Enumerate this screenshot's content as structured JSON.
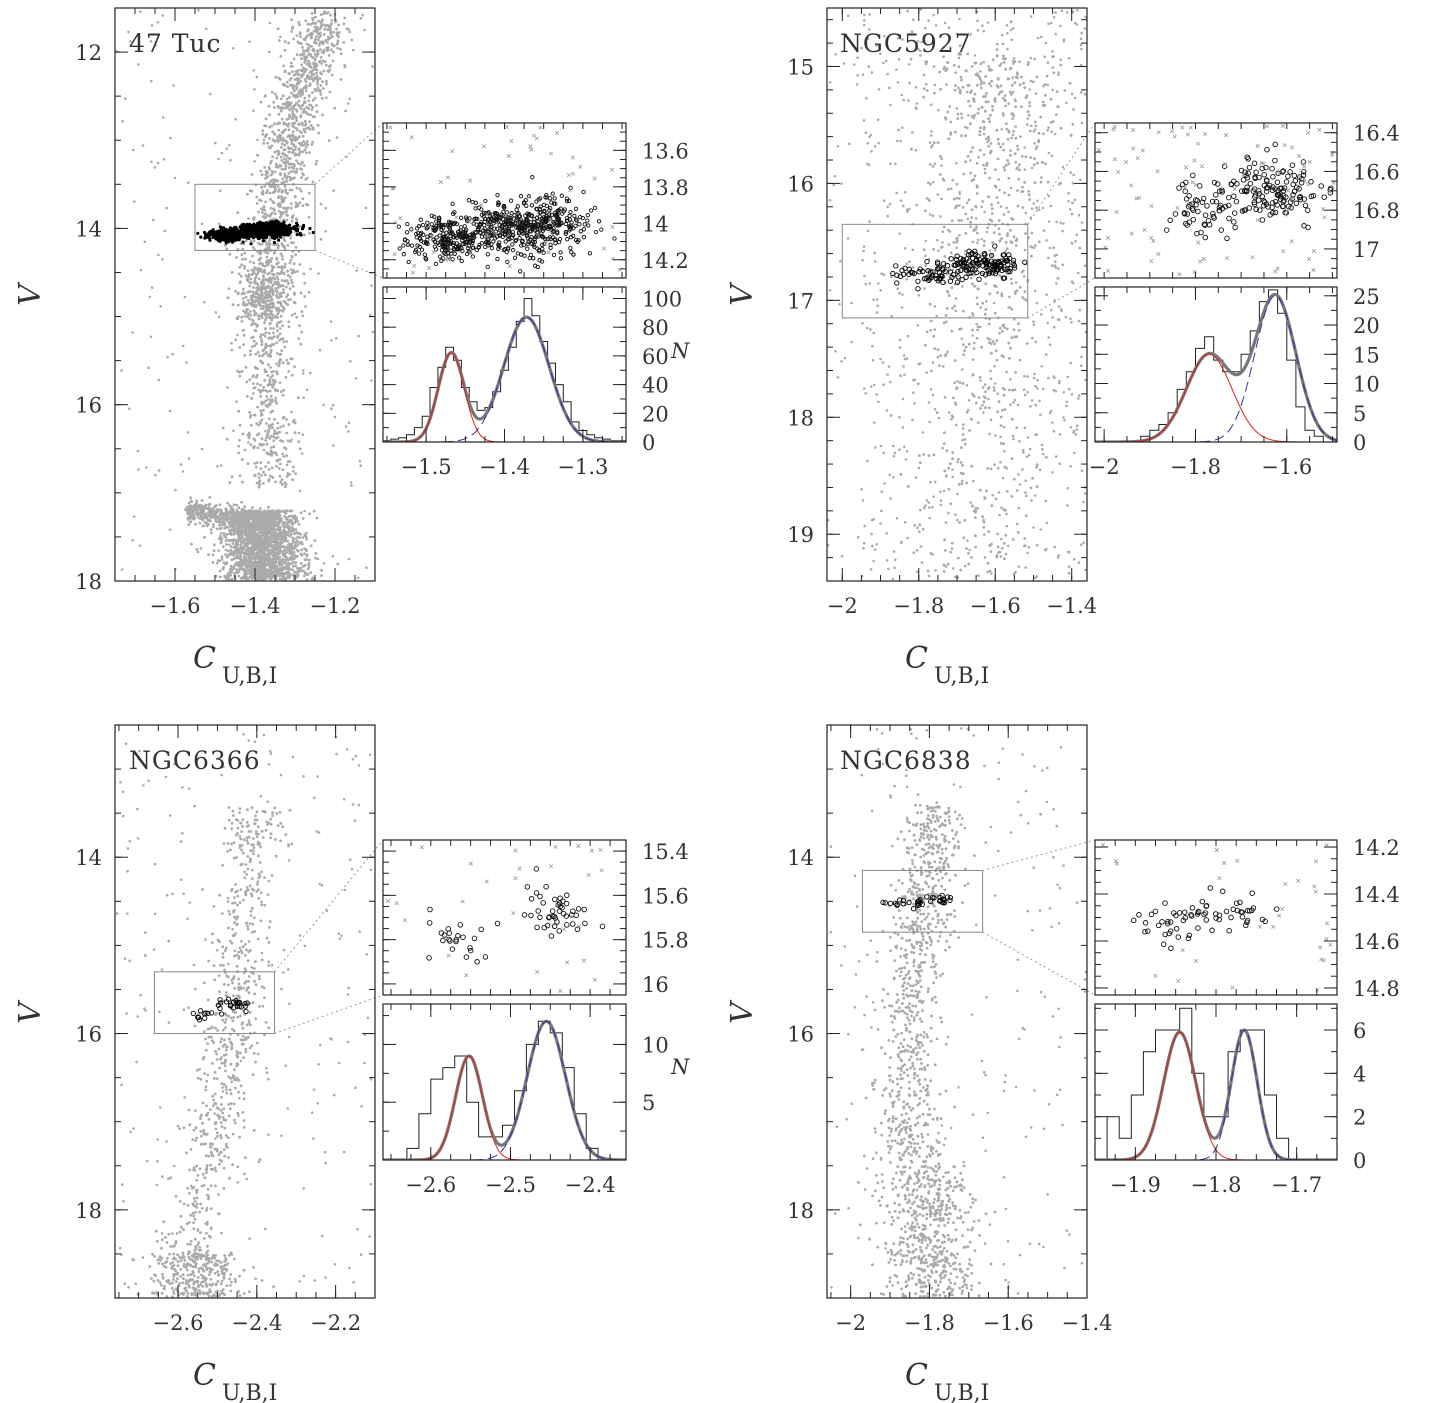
{
  "chart_data": [
    {
      "type": "scatter",
      "title": "47 Tuc",
      "xlabel": "C",
      "xlabel_sub": "U,B,I",
      "ylabel": "V",
      "xlim": [
        -1.75,
        -1.1
      ],
      "ylim": [
        18,
        11.5
      ],
      "y_inverted": true,
      "xticks": [
        -1.6,
        -1.4,
        -1.2
      ],
      "xtick_labels": [
        "-1.6",
        "-1.4",
        "-1.2"
      ],
      "yticks": [
        12,
        14,
        16,
        18
      ],
      "ytick_labels": [
        "12",
        "14",
        "16",
        "18"
      ],
      "colors": {
        "field_points": "#aaaaaa",
        "selected_points": "#000000"
      },
      "cmd_features": {
        "main_sequence": {
          "turnoff_x": -1.39,
          "v_top": 17.2,
          "v_bottom": 18
        },
        "subgiant_branch": {
          "x_from": -1.57,
          "x_to": -1.35,
          "v": 17.2
        },
        "red_giant_branch": [
          [
            -1.36,
            16.9
          ],
          [
            -1.37,
            15.0
          ],
          [
            -1.37,
            14.5
          ],
          [
            -1.33,
            13.5
          ],
          [
            -1.29,
            12.5
          ],
          [
            -1.22,
            11.6
          ]
        ],
        "selected_region": {
          "x": [
            -1.55,
            -1.25
          ],
          "v": [
            13.5,
            14.25
          ]
        }
      },
      "zoom_box": {
        "x": [
          -1.55,
          -1.25
        ],
        "y": [
          13.5,
          14.25
        ]
      },
      "inset_scatter": {
        "xlim": [
          -1.555,
          -1.245
        ],
        "ylim": [
          14.3,
          13.45
        ],
        "yticks": [
          13.6,
          13.8,
          14,
          14.2
        ],
        "ytick_labels": [
          "13.6",
          "13.8",
          "14",
          "14.2"
        ],
        "marker": "circle",
        "populations": [
          {
            "x_center": -1.47,
            "x_sigma": 0.02,
            "v_center": 14.08,
            "v_sigma": 0.06,
            "fraction": 0.37
          },
          {
            "x_center": -1.37,
            "x_sigma": 0.03,
            "v_center": 14.02,
            "v_sigma": 0.08,
            "fraction": 0.63
          }
        ]
      },
      "histogram": {
        "xlim": [
          -1.555,
          -1.245
        ],
        "ylim": [
          0,
          108
        ],
        "xticks": [
          -1.5,
          -1.4,
          -1.3
        ],
        "xtick_labels": [
          "-1.5",
          "-1.4",
          "-1.3"
        ],
        "yticks": [
          0,
          20,
          40,
          60,
          80,
          100
        ],
        "ytick_labels": [
          "0",
          "20",
          "40",
          "60",
          "80",
          "100"
        ],
        "ylabel": "N",
        "bin_edges": [
          -1.555,
          -1.545,
          -1.535,
          -1.525,
          -1.515,
          -1.505,
          -1.495,
          -1.485,
          -1.475,
          -1.465,
          -1.455,
          -1.445,
          -1.435,
          -1.425,
          -1.415,
          -1.405,
          -1.395,
          -1.385,
          -1.375,
          -1.365,
          -1.355,
          -1.345,
          -1.335,
          -1.325,
          -1.315,
          -1.305,
          -1.295,
          -1.285,
          -1.275,
          -1.265,
          -1.255,
          -1.245
        ],
        "counts": [
          1,
          2,
          3,
          5,
          10,
          18,
          38,
          52,
          66,
          57,
          38,
          28,
          22,
          24,
          35,
          50,
          66,
          84,
          100,
          88,
          70,
          55,
          40,
          28,
          14,
          8,
          5,
          3,
          2,
          1,
          1
        ],
        "gaussians": [
          {
            "mu": -1.468,
            "sigma": 0.0165,
            "amp": 62,
            "color": "#dd2222"
          },
          {
            "mu": -1.372,
            "sigma": 0.029,
            "amp": 87,
            "color": "#3333aa"
          }
        ],
        "sum_color": "#777777"
      }
    },
    {
      "type": "scatter",
      "title": "NGC5927",
      "xlabel": "C",
      "xlabel_sub": "U,B,I",
      "ylabel": "V",
      "xlim": [
        -2.04,
        -1.36
      ],
      "ylim": [
        19.4,
        14.5
      ],
      "y_inverted": true,
      "xticks": [
        -2,
        -1.8,
        -1.6,
        -1.4
      ],
      "xtick_labels": [
        "-2",
        "-1.8",
        "-1.6",
        "-1.4"
      ],
      "yticks": [
        15,
        16,
        17,
        18,
        19
      ],
      "ytick_labels": [
        "15",
        "16",
        "17",
        "18",
        "19"
      ],
      "colors": {
        "field_points": "#aaaaaa",
        "selected_points": "#000000"
      },
      "cmd_features": {
        "red_giant_branch": [
          [
            -1.65,
            19.4
          ],
          [
            -1.63,
            17.5
          ],
          [
            -1.62,
            16.5
          ],
          [
            -1.6,
            15.5
          ],
          [
            -1.62,
            14.9
          ]
        ],
        "selected_region": {
          "x": [
            -1.99,
            -1.52
          ],
          "v": [
            16.35,
            17.12
          ]
        }
      },
      "zoom_box": {
        "x": [
          -2.0,
          -1.515
        ],
        "y": [
          16.35,
          17.15
        ]
      },
      "inset_scatter": {
        "xlim": [
          -2.02,
          -1.49
        ],
        "ylim": [
          17.15,
          16.35
        ],
        "yticks": [
          16.4,
          16.6,
          16.8,
          17
        ],
        "ytick_labels": [
          "16.4",
          "16.6",
          "16.8",
          "17"
        ],
        "marker": "circle",
        "populations": [
          {
            "x_center": -1.77,
            "x_sigma": 0.04,
            "v_center": 16.78,
            "v_sigma": 0.07,
            "fraction": 0.35
          },
          {
            "x_center": -1.63,
            "x_sigma": 0.04,
            "v_center": 16.7,
            "v_sigma": 0.08,
            "fraction": 0.65
          }
        ]
      },
      "histogram": {
        "xlim": [
          -2.02,
          -1.49
        ],
        "ylim": [
          0,
          26.5
        ],
        "xticks": [
          -2,
          -1.8,
          -1.6
        ],
        "xtick_labels": [
          "-2",
          "-1.8",
          "-1.6"
        ],
        "yticks": [
          0,
          5,
          10,
          15,
          20,
          25
        ],
        "ytick_labels": [
          "0",
          "5",
          "10",
          "15",
          "20",
          "25"
        ],
        "ylabel": "",
        "bin_edges": [
          -2.02,
          -2.0,
          -1.98,
          -1.96,
          -1.94,
          -1.92,
          -1.9,
          -1.88,
          -1.86,
          -1.84,
          -1.82,
          -1.8,
          -1.78,
          -1.76,
          -1.74,
          -1.72,
          -1.7,
          -1.68,
          -1.66,
          -1.64,
          -1.62,
          -1.6,
          -1.58,
          -1.56,
          -1.54,
          -1.52,
          -1.5
        ],
        "counts": [
          0,
          0,
          0,
          0,
          0,
          1,
          2,
          3,
          5,
          9,
          12,
          16,
          18,
          14,
          12,
          12,
          15,
          19,
          24,
          26,
          22,
          14,
          6,
          2,
          1,
          0
        ],
        "gaussians": [
          {
            "mu": -1.77,
            "sigma": 0.05,
            "amp": 15,
            "color": "#dd2222"
          },
          {
            "mu": -1.625,
            "sigma": 0.045,
            "amp": 25,
            "color": "#3333aa"
          }
        ],
        "sum_color": "#777777"
      }
    },
    {
      "type": "scatter",
      "title": "NGC6366",
      "xlabel": "C",
      "xlabel_sub": "U,B,I",
      "ylabel": "V",
      "xlim": [
        -2.76,
        -2.1
      ],
      "ylim": [
        19,
        12.5
      ],
      "y_inverted": true,
      "xticks": [
        -2.6,
        -2.4,
        -2.2
      ],
      "xtick_labels": [
        "-2.6",
        "-2.4",
        "-2.2"
      ],
      "yticks": [
        14,
        16,
        18
      ],
      "ytick_labels": [
        "14",
        "16",
        "18"
      ],
      "colors": {
        "field_points": "#aaaaaa",
        "selected_points": "#000000"
      },
      "cmd_features": {
        "main_sequence": {
          "turnoff_x": -2.56,
          "v_top": 18.5,
          "v_bottom": 19
        },
        "red_giant_branch": [
          [
            -2.58,
            18.6
          ],
          [
            -2.52,
            17.4
          ],
          [
            -2.47,
            16.3
          ],
          [
            -2.45,
            15.4
          ],
          [
            -2.43,
            14.2
          ],
          [
            -2.4,
            13.4
          ]
        ],
        "selected_region": {
          "x": [
            -2.58,
            -2.42
          ],
          "v": [
            15.55,
            15.85
          ]
        }
      },
      "zoom_box": {
        "x": [
          -2.66,
          -2.355
        ],
        "y": [
          15.3,
          16.0
        ]
      },
      "inset_scatter": {
        "xlim": [
          -2.66,
          -2.355
        ],
        "ylim": [
          16.05,
          15.35
        ],
        "yticks": [
          15.4,
          15.6,
          15.8,
          16
        ],
        "ytick_labels": [
          "15.4",
          "15.6",
          "15.8",
          "16"
        ],
        "marker": "circle",
        "populations": [
          {
            "x_center": -2.56,
            "x_sigma": 0.02,
            "v_center": 15.8,
            "v_sigma": 0.05,
            "fraction": 0.45
          },
          {
            "x_center": -2.45,
            "x_sigma": 0.02,
            "v_center": 15.68,
            "v_sigma": 0.06,
            "fraction": 0.55
          }
        ]
      },
      "histogram": {
        "xlim": [
          -2.66,
          -2.355
        ],
        "ylim": [
          0,
          13.5
        ],
        "xticks": [
          -2.6,
          -2.5,
          -2.4
        ],
        "xtick_labels": [
          "-2.6",
          "-2.5",
          "-2.4"
        ],
        "yticks": [
          5,
          10
        ],
        "ytick_labels": [
          "5",
          "10"
        ],
        "ylabel": "N",
        "bin_edges": [
          -2.66,
          -2.645,
          -2.63,
          -2.615,
          -2.6,
          -2.585,
          -2.57,
          -2.555,
          -2.54,
          -2.525,
          -2.51,
          -2.495,
          -2.48,
          -2.465,
          -2.45,
          -2.435,
          -2.42,
          -2.405,
          -2.39,
          -2.375,
          -2.36
        ],
        "counts": [
          0,
          0,
          1,
          4,
          7,
          8,
          9,
          5,
          2,
          2,
          3,
          6,
          10,
          12,
          11,
          8,
          4,
          1,
          0,
          0
        ],
        "gaussians": [
          {
            "mu": -2.552,
            "sigma": 0.017,
            "amp": 9,
            "color": "#dd2222"
          },
          {
            "mu": -2.455,
            "sigma": 0.024,
            "amp": 12,
            "color": "#3333aa"
          }
        ],
        "sum_color": "#777777"
      }
    },
    {
      "type": "scatter",
      "title": "NGC6838",
      "xlabel": "C",
      "xlabel_sub": "U,B,I",
      "ylabel": "V",
      "xlim": [
        -2.06,
        -1.4
      ],
      "ylim": [
        19,
        12.5
      ],
      "y_inverted": true,
      "xticks": [
        -2,
        -1.8,
        -1.6,
        -1.4
      ],
      "xtick_labels": [
        "-2",
        "-1.8",
        "-1.6",
        "-1.4"
      ],
      "yticks": [
        14,
        16,
        18
      ],
      "ytick_labels": [
        "14",
        "16",
        "18"
      ],
      "colors": {
        "field_points": "#aaaaaa",
        "selected_points": "#000000"
      },
      "cmd_features": {
        "main_sequence": {
          "turnoff_x": -1.82,
          "v_top": 17.5,
          "v_bottom": 19
        },
        "red_giant_branch": [
          [
            -1.85,
            17.5
          ],
          [
            -1.85,
            16.5
          ],
          [
            -1.84,
            15.2
          ],
          [
            -1.8,
            14.3
          ],
          [
            -1.79,
            13.4
          ]
        ],
        "selected_region": {
          "x": [
            -1.96,
            -1.74
          ],
          "v": [
            14.38,
            14.62
          ]
        }
      },
      "zoom_box": {
        "x": [
          -1.97,
          -1.665
        ],
        "y": [
          14.15,
          14.85
        ]
      },
      "inset_scatter": {
        "xlim": [
          -1.95,
          -1.65
        ],
        "ylim": [
          14.83,
          14.17
        ],
        "yticks": [
          14.2,
          14.4,
          14.6,
          14.8
        ],
        "ytick_labels": [
          "14.2",
          "14.4",
          "14.6",
          "14.8"
        ],
        "marker": "circle",
        "populations": [
          {
            "x_center": -1.85,
            "x_sigma": 0.02,
            "v_center": 14.52,
            "v_sigma": 0.04,
            "fraction": 0.5
          },
          {
            "x_center": -1.765,
            "x_sigma": 0.015,
            "v_center": 14.48,
            "v_sigma": 0.04,
            "fraction": 0.5
          }
        ]
      },
      "histogram": {
        "xlim": [
          -1.95,
          -1.65
        ],
        "ylim": [
          0,
          7.2
        ],
        "xticks": [
          -1.9,
          -1.8,
          -1.7
        ],
        "xtick_labels": [
          "-1.9",
          "-1.8",
          "-1.7"
        ],
        "yticks": [
          0,
          2,
          4,
          6
        ],
        "ytick_labels": [
          "0",
          "2",
          "4",
          "6"
        ],
        "ylabel": "",
        "bin_edges": [
          -1.935,
          -1.92,
          -1.905,
          -1.89,
          -1.875,
          -1.86,
          -1.845,
          -1.83,
          -1.815,
          -1.8,
          -1.785,
          -1.77,
          -1.755,
          -1.74,
          -1.725,
          -1.71,
          -1.695,
          -1.68
        ],
        "counts": [
          2,
          1,
          3,
          5,
          6,
          6,
          7,
          4,
          2,
          2,
          5,
          6,
          6,
          3,
          1,
          0,
          0
        ],
        "gaussians": [
          {
            "mu": -1.845,
            "sigma": 0.02,
            "amp": 5.9,
            "color": "#dd2222"
          },
          {
            "mu": -1.765,
            "sigma": 0.016,
            "amp": 6.0,
            "color": "#3333aa"
          }
        ],
        "sum_color": "#777777"
      }
    }
  ]
}
